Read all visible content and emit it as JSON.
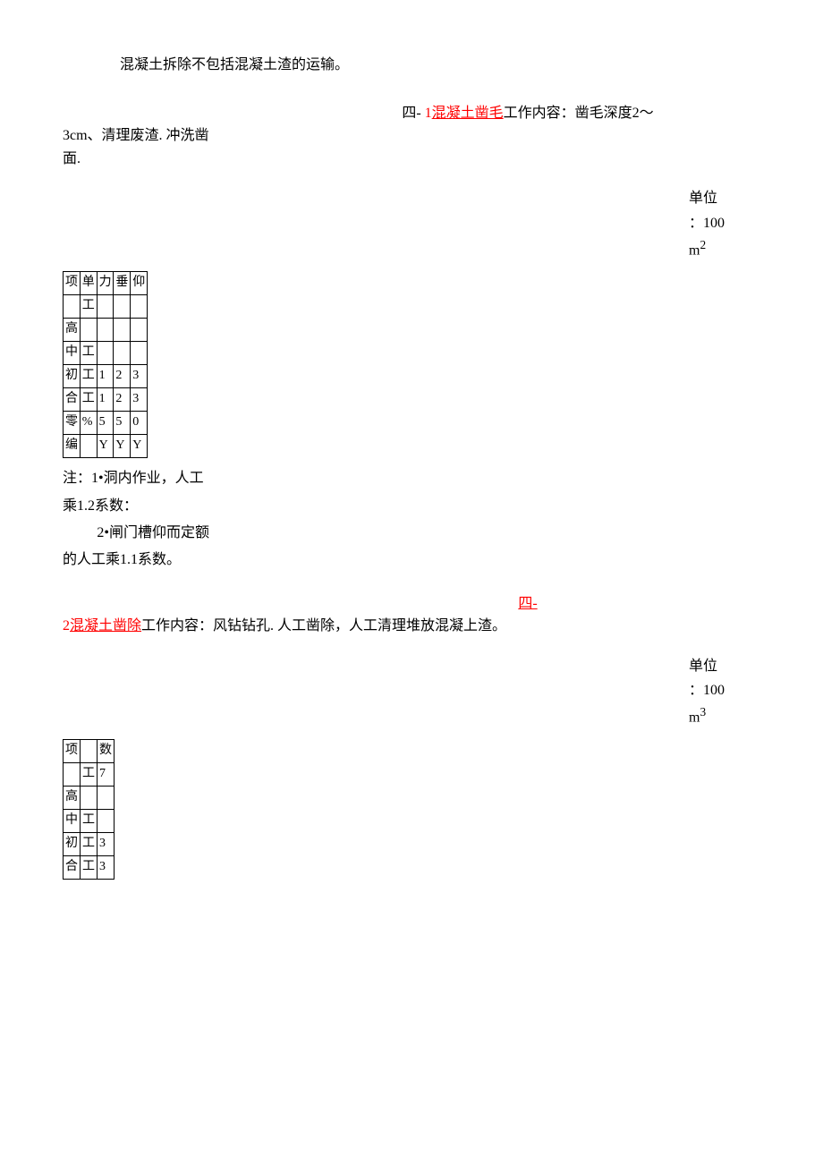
{
  "intro": "混凝土拆除不包括混凝土渣的运输。",
  "section1": {
    "prefix": "四-   ",
    "prefix_red": "1",
    "title_red": "混凝土凿毛",
    "title_rest": "工作内容：凿毛深度2～",
    "line2": "3cm、清理废渣. 冲洗凿",
    "line3": "面.",
    "unit_label": "单位",
    "unit_value_pre": "：100",
    "unit_value_post": "m",
    "unit_sup": "2"
  },
  "table1": {
    "rows": [
      [
        "项",
        "单",
        "力",
        "垂",
        "仰"
      ],
      [
        "",
        "工",
        "",
        "",
        ""
      ],
      [
        "高",
        "",
        "",
        "",
        ""
      ],
      [
        "中",
        "工",
        "",
        "",
        ""
      ],
      [
        "初",
        "工",
        "1",
        "2",
        "3"
      ],
      [
        "合",
        "工",
        "1",
        "2",
        "3"
      ],
      [
        "零",
        "%",
        "5",
        "5",
        "0"
      ],
      [
        "编",
        "",
        "Y",
        "Y",
        "Y"
      ]
    ]
  },
  "notes": {
    "p1": "注：1•洞内作业，人工乘1.2系数：",
    "p2": "2•闸门槽仰而定额的人工乘1.1系数。"
  },
  "section2": {
    "prefix": "四-",
    "prefix_red": "2",
    "title_red": "混凝土凿除",
    "title_rest": "工作内容：风钻钻孔. 人工凿除，人工清理堆放混凝上渣。",
    "unit_label": "单位",
    "unit_value_pre": "：100",
    "unit_value_post": "m",
    "unit_sup": "3"
  },
  "table2": {
    "rows": [
      [
        "项",
        "",
        "数"
      ],
      [
        "",
        "工",
        "7"
      ],
      [
        "高",
        "",
        ""
      ],
      [
        "中",
        "工",
        ""
      ],
      [
        "初",
        "工",
        "3"
      ],
      [
        "合",
        "工",
        "3"
      ]
    ]
  }
}
